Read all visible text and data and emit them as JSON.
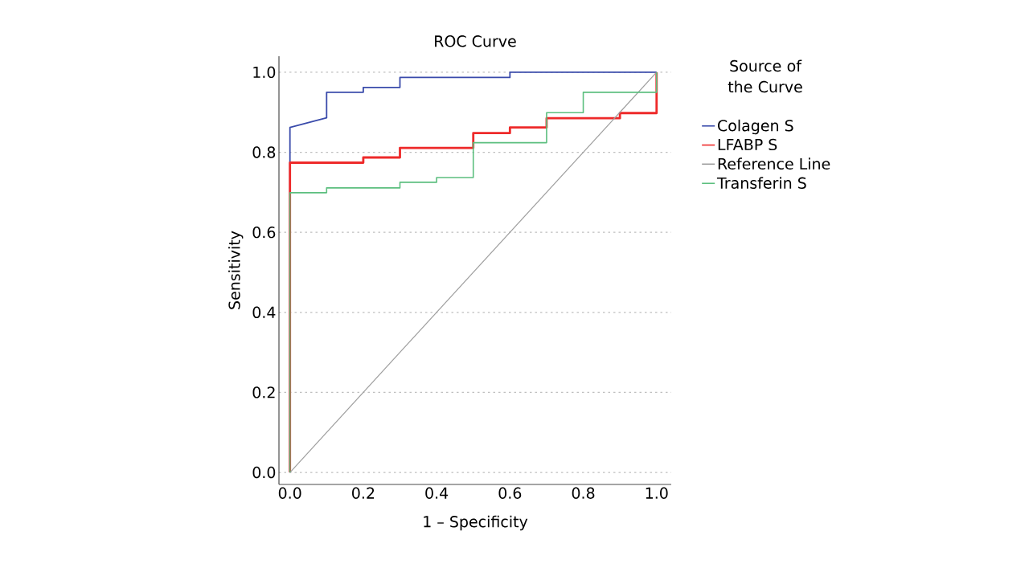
{
  "chart_data": {
    "type": "line",
    "title": "ROC Curve",
    "xlabel": "1 – Specificity",
    "ylabel": "Sensitivity",
    "legend_title": "Source of the Curve",
    "xlim": [
      -0.03,
      1.04
    ],
    "ylim": [
      -0.03,
      1.04
    ],
    "xticks": [
      {
        "value": 0,
        "label": "0.0"
      },
      0.2,
      0.4,
      0.6,
      0.8,
      {
        "value": 1,
        "label": "1.0"
      }
    ],
    "yticks": [
      {
        "value": 0,
        "label": "0.0"
      },
      0.2,
      0.4,
      0.6,
      0.8,
      {
        "value": 1,
        "label": "1.0"
      }
    ],
    "grid": "y",
    "legend": "right",
    "marker": "none",
    "line_style": "solid",
    "series": [
      {
        "name": "Colagen S",
        "color": "#3a4bab",
        "x": [
          0,
          0,
          0.1,
          0.1,
          0.2,
          0.2,
          0.3,
          0.3,
          0.6,
          0.6,
          1
        ],
        "values": [
          0,
          0.862,
          0.886,
          0.95,
          0.95,
          0.962,
          0.962,
          0.987,
          0.987,
          1,
          1
        ]
      },
      {
        "name": "LFABP S",
        "color": "#ee2a2a",
        "x": [
          0,
          0,
          0.2,
          0.2,
          0.3,
          0.3,
          0.5,
          0.5,
          0.6,
          0.6,
          0.7,
          0.7,
          0.9,
          0.9,
          1,
          1
        ],
        "values": [
          0,
          0.774,
          0.774,
          0.787,
          0.787,
          0.811,
          0.811,
          0.848,
          0.848,
          0.862,
          0.862,
          0.885,
          0.885,
          0.898,
          0.898,
          1
        ]
      },
      {
        "name": "Reference Line",
        "color": "#9e9e9e",
        "x": [
          0,
          1
        ],
        "values": [
          0,
          1
        ]
      },
      {
        "name": "Transferin S",
        "color": "#5cbf7f",
        "x": [
          0,
          0,
          0.1,
          0.1,
          0.3,
          0.3,
          0.4,
          0.4,
          0.5,
          0.5,
          0.7,
          0.7,
          0.8,
          0.8,
          1,
          1
        ],
        "values": [
          0,
          0.699,
          0.699,
          0.711,
          0.711,
          0.725,
          0.725,
          0.737,
          0.737,
          0.824,
          0.824,
          0.899,
          0.899,
          0.95,
          0.95,
          1
        ]
      }
    ]
  }
}
